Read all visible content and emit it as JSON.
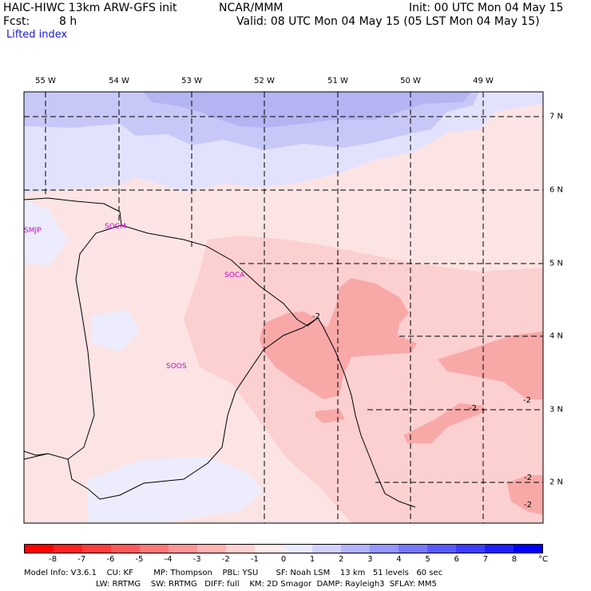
{
  "header": {
    "model": "HAIC-HIWC 13km ARW-GFS init",
    "org": "NCAR/MMM",
    "init": "Init: 00 UTC Mon 04 May 15",
    "fcst_label": "Fcst:",
    "fcst_value": "8 h",
    "valid": "Valid: 08 UTC Mon 04 May 15 (05 LST Mon 04 May 15)"
  },
  "field": "Lifted index",
  "longitudes": [
    "55 W",
    "54 W",
    "53 W",
    "52 W",
    "51 W",
    "50 W",
    "49 W"
  ],
  "latitudes": [
    "7 N",
    "6 N",
    "5 N",
    "4 N",
    "3 N",
    "2 N"
  ],
  "stations": [
    "SMJP",
    "SOCM",
    "SOCA",
    "SOOS"
  ],
  "contour_labels": [
    "-2",
    "-2",
    "-2",
    "-2",
    "-2"
  ],
  "colorbar": {
    "ticks": [
      "-8",
      "-7",
      "-6",
      "-5",
      "-4",
      "-3",
      "-2",
      "-1",
      "0",
      "1",
      "2",
      "3",
      "4",
      "5",
      "6",
      "7",
      "8"
    ],
    "unit": "°C",
    "colors": [
      "#ff0000",
      "#ff2020",
      "#ff3c3c",
      "#ff5a5a",
      "#ff7878",
      "#ff9696",
      "#ffb4b4",
      "#ffd2d2",
      "#ffecec",
      "#ececff",
      "#d2d2ff",
      "#b4b4ff",
      "#9696ff",
      "#7878ff",
      "#5a5aff",
      "#3c3cff",
      "#1e1eff",
      "#0000ff"
    ]
  },
  "footer": {
    "line1": "Model Info: V3.6.1    CU: KF        MP: Thompson    PBL: YSU       SF: Noah LSM    13 km   51 levels   60 sec",
    "line2": "LW: RRTMG    SW: RRTMG   DIFF: full    KM: 2D Smagor  DAMP: Rayleigh3  SFLAY: MM5"
  }
}
